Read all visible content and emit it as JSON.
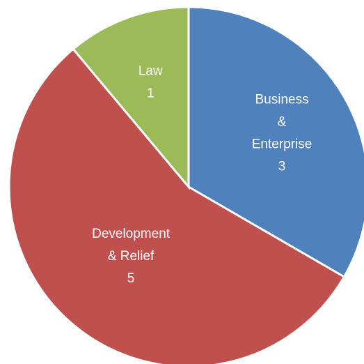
{
  "chart_data": {
    "type": "pie",
    "title": "",
    "start_angle_deg": 0,
    "direction": "clockwise",
    "legend": "none",
    "slices": [
      {
        "category": [
          "Business",
          "&",
          "Enterprise"
        ],
        "value": 3,
        "value_label": "3",
        "color": "#4F81BD"
      },
      {
        "category": [
          "Development",
          "& Relief"
        ],
        "value": 5,
        "value_label": "5",
        "color": "#C0504D"
      },
      {
        "category": [
          "Law"
        ],
        "value": 1,
        "value_label": "1",
        "color": "#9BBB59"
      }
    ]
  }
}
